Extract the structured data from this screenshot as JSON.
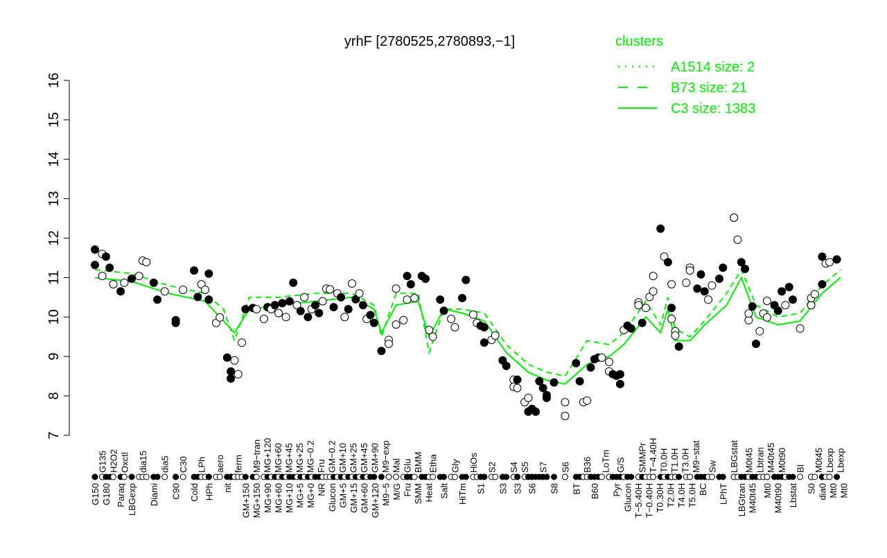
{
  "chart_data": {
    "type": "scatter",
    "title": "yrhF [2780525,2780893,−1]",
    "xlabel": "",
    "ylabel": "",
    "ylim": [
      7,
      16
    ],
    "xlim": [
      0,
      203
    ],
    "yticks": [
      "7",
      "8",
      "9",
      "10",
      "11",
      "12",
      "13",
      "14",
      "15",
      "16"
    ],
    "legend": {
      "title": "clusters",
      "placement": "top-right",
      "color": "#00ee00",
      "entries": [
        {
          "label": "A1514 size: 2",
          "style": "dotted"
        },
        {
          "label": "B73 size: 21",
          "style": "dashed"
        },
        {
          "label": "C3 size: 1383",
          "style": "solid"
        }
      ]
    },
    "points": [
      [
        0,
        11.71,
        1
      ],
      [
        0,
        11.32,
        1
      ],
      [
        2,
        11.6,
        0
      ],
      [
        2,
        11.04,
        0
      ],
      [
        3,
        11.53,
        1
      ],
      [
        4,
        11.25,
        1
      ],
      [
        5,
        10.83,
        0
      ],
      [
        7,
        10.65,
        1
      ],
      [
        8,
        10.87,
        0
      ],
      [
        10,
        10.97,
        1
      ],
      [
        12,
        11.04,
        0
      ],
      [
        13,
        11.43,
        0
      ],
      [
        14,
        11.39,
        0
      ],
      [
        16,
        10.87,
        1
      ],
      [
        17,
        10.44,
        1
      ],
      [
        19,
        10.65,
        0
      ],
      [
        22,
        9.92,
        1
      ],
      [
        22,
        9.85,
        1
      ],
      [
        24,
        10.69,
        0
      ],
      [
        27,
        11.18,
        1
      ],
      [
        28,
        10.51,
        1
      ],
      [
        29,
        10.83,
        0
      ],
      [
        30,
        10.69,
        0
      ],
      [
        31,
        11.1,
        1
      ],
      [
        31,
        10.44,
        1
      ],
      [
        33,
        9.85,
        0
      ],
      [
        34,
        9.99,
        0
      ],
      [
        36,
        8.97,
        1
      ],
      [
        37,
        8.62,
        1
      ],
      [
        37,
        8.44,
        1
      ],
      [
        38,
        8.9,
        0
      ],
      [
        39,
        8.55,
        0
      ],
      [
        40,
        9.35,
        0
      ],
      [
        41,
        10.2,
        1
      ],
      [
        43,
        10.23,
        1
      ],
      [
        44,
        10.2,
        0
      ],
      [
        46,
        9.95,
        0
      ],
      [
        47,
        10.25,
        1
      ],
      [
        48,
        10.2,
        0
      ],
      [
        49,
        10.3,
        1
      ],
      [
        50,
        10.1,
        0
      ],
      [
        51,
        10.35,
        1
      ],
      [
        52,
        10.0,
        0
      ],
      [
        53,
        10.4,
        1
      ],
      [
        54,
        10.87,
        1
      ],
      [
        55,
        10.3,
        0
      ],
      [
        56,
        10.15,
        1
      ],
      [
        57,
        10.5,
        0
      ],
      [
        58,
        10.0,
        1
      ],
      [
        59,
        10.2,
        0
      ],
      [
        60,
        10.3,
        1
      ],
      [
        61,
        10.1,
        1
      ],
      [
        62,
        10.4,
        0
      ],
      [
        63,
        10.72,
        0
      ],
      [
        64,
        10.7,
        0
      ],
      [
        65,
        10.25,
        1
      ],
      [
        66,
        10.6,
        0
      ],
      [
        67,
        10.5,
        1
      ],
      [
        68,
        10.0,
        0
      ],
      [
        69,
        10.2,
        1
      ],
      [
        70,
        10.85,
        0
      ],
      [
        71,
        10.45,
        1
      ],
      [
        72,
        10.6,
        0
      ],
      [
        73,
        10.3,
        1
      ],
      [
        74,
        9.95,
        0
      ],
      [
        75,
        10.05,
        1
      ],
      [
        76,
        9.85,
        1
      ],
      [
        78,
        9.14,
        1
      ],
      [
        80,
        9.42,
        0
      ],
      [
        80,
        9.32,
        0
      ],
      [
        82,
        10.72,
        0
      ],
      [
        82,
        9.81,
        0
      ],
      [
        84,
        9.92,
        0
      ],
      [
        85,
        10.44,
        0
      ],
      [
        85,
        11.04,
        1
      ],
      [
        86,
        10.83,
        1
      ],
      [
        87,
        10.48,
        0
      ],
      [
        89,
        11.04,
        1
      ],
      [
        90,
        10.97,
        1
      ],
      [
        91,
        9.67,
        0
      ],
      [
        92,
        9.5,
        0
      ],
      [
        94,
        10.44,
        1
      ],
      [
        95,
        10.16,
        1
      ],
      [
        97,
        9.95,
        0
      ],
      [
        98,
        9.74,
        0
      ],
      [
        100,
        10.48,
        1
      ],
      [
        101,
        10.94,
        1
      ],
      [
        103,
        10.06,
        0
      ],
      [
        104,
        9.85,
        0
      ],
      [
        105,
        9.78,
        1
      ],
      [
        106,
        9.35,
        1
      ],
      [
        106,
        9.74,
        1
      ],
      [
        108,
        9.42,
        0
      ],
      [
        109,
        9.53,
        0
      ],
      [
        111,
        8.9,
        1
      ],
      [
        112,
        8.76,
        1
      ],
      [
        114,
        8.41,
        0
      ],
      [
        114,
        8.23,
        0
      ],
      [
        115,
        8.2,
        0
      ],
      [
        115,
        8.41,
        1
      ],
      [
        117,
        7.84,
        0
      ],
      [
        118,
        7.95,
        0
      ],
      [
        118,
        7.6,
        1
      ],
      [
        119,
        7.67,
        1
      ],
      [
        120,
        7.6,
        1
      ],
      [
        121,
        8.37,
        1
      ],
      [
        122,
        8.2,
        1
      ],
      [
        123,
        8.02,
        1
      ],
      [
        123,
        7.95,
        1
      ],
      [
        125,
        8.34,
        1
      ],
      [
        128,
        7.84,
        0
      ],
      [
        128,
        7.49,
        0
      ],
      [
        131,
        8.83,
        1
      ],
      [
        132,
        8.37,
        1
      ],
      [
        133,
        7.84,
        0
      ],
      [
        134,
        7.88,
        0
      ],
      [
        135,
        8.72,
        1
      ],
      [
        136,
        8.93,
        1
      ],
      [
        137,
        8.97,
        1
      ],
      [
        138,
        8.97,
        0
      ],
      [
        140,
        8.86,
        0
      ],
      [
        140,
        8.62,
        0
      ],
      [
        141,
        8.55,
        1
      ],
      [
        142,
        8.51,
        1
      ],
      [
        143,
        8.55,
        1
      ],
      [
        143,
        8.3,
        1
      ],
      [
        144,
        9.67,
        0
      ],
      [
        145,
        9.78,
        1
      ],
      [
        146,
        9.71,
        1
      ],
      [
        148,
        10.37,
        0
      ],
      [
        148,
        10.3,
        0
      ],
      [
        149,
        9.85,
        1
      ],
      [
        150,
        10.23,
        0
      ],
      [
        151,
        10.51,
        0
      ],
      [
        152,
        10.65,
        0
      ],
      [
        152,
        11.04,
        0
      ],
      [
        154,
        12.24,
        1
      ],
      [
        155,
        11.53,
        0
      ],
      [
        156,
        11.39,
        1
      ],
      [
        157,
        10.83,
        0
      ],
      [
        157,
        10.23,
        1
      ],
      [
        157,
        9.95,
        0
      ],
      [
        158,
        9.64,
        0
      ],
      [
        158,
        9.53,
        0
      ],
      [
        159,
        9.25,
        1
      ],
      [
        161,
        10.87,
        0
      ],
      [
        162,
        11.25,
        0
      ],
      [
        162,
        11.18,
        0
      ],
      [
        164,
        10.72,
        1
      ],
      [
        165,
        11.08,
        1
      ],
      [
        166,
        10.65,
        1
      ],
      [
        167,
        10.44,
        0
      ],
      [
        168,
        10.8,
        0
      ],
      [
        170,
        10.97,
        1
      ],
      [
        171,
        11.25,
        1
      ],
      [
        174,
        12.52,
        0
      ],
      [
        174,
        12.52,
        0
      ],
      [
        175,
        11.96,
        0
      ],
      [
        176,
        11.39,
        1
      ],
      [
        177,
        11.22,
        1
      ],
      [
        178,
        9.92,
        0
      ],
      [
        178,
        10.09,
        0
      ],
      [
        179,
        10.27,
        1
      ],
      [
        180,
        9.32,
        1
      ],
      [
        181,
        9.64,
        0
      ],
      [
        182,
        10.09,
        0
      ],
      [
        183,
        10.41,
        0
      ],
      [
        183,
        9.99,
        0
      ],
      [
        185,
        10.3,
        1
      ],
      [
        186,
        10.16,
        1
      ],
      [
        187,
        10.65,
        1
      ],
      [
        188,
        10.3,
        0
      ],
      [
        189,
        10.76,
        1
      ],
      [
        190,
        10.44,
        1
      ],
      [
        192,
        9.71,
        0
      ],
      [
        195,
        10.3,
        0
      ],
      [
        195,
        10.48,
        0
      ],
      [
        196,
        10.58,
        0
      ],
      [
        198,
        10.83,
        1
      ],
      [
        198,
        11.53,
        1
      ],
      [
        199,
        11.36,
        0
      ],
      [
        200,
        11.39,
        0
      ],
      [
        202,
        11.46,
        1
      ]
    ],
    "series": [
      {
        "name": "C3 size: 1383",
        "style": "solid",
        "x": [
          0,
          10,
          20,
          30,
          35,
          38,
          42,
          50,
          60,
          70,
          76,
          78,
          82,
          88,
          91,
          95,
          100,
          106,
          112,
          118,
          123,
          128,
          134,
          140,
          144,
          150,
          154,
          156,
          158,
          162,
          166,
          172,
          176,
          180,
          186,
          192,
          198,
          203
        ],
        "y": [
          11.0,
          10.9,
          10.6,
          10.4,
          9.9,
          9.6,
          10.2,
          10.3,
          10.4,
          10.5,
          10.2,
          9.6,
          10.3,
          10.4,
          9.5,
          10.2,
          10.1,
          9.9,
          9.1,
          8.6,
          8.4,
          8.3,
          8.8,
          9.0,
          9.3,
          10.0,
          9.6,
          10.2,
          9.4,
          9.4,
          9.8,
          10.3,
          11.0,
          10.0,
          9.8,
          9.9,
          10.6,
          11.0
        ]
      },
      {
        "name": "B73 size: 21",
        "style": "dashed",
        "x": [
          0,
          10,
          20,
          30,
          35,
          38,
          42,
          50,
          60,
          70,
          76,
          78,
          82,
          88,
          91,
          95,
          100,
          106,
          112,
          118,
          123,
          128,
          134,
          140,
          144,
          150,
          154,
          156,
          158,
          162,
          166,
          172,
          176,
          180,
          186,
          192,
          198,
          203
        ],
        "y": [
          11.2,
          11.1,
          10.8,
          10.6,
          10.2,
          9.4,
          10.5,
          10.5,
          10.6,
          10.6,
          10.3,
          9.5,
          10.6,
          10.6,
          9.1,
          10.2,
          10.2,
          10.1,
          9.3,
          8.8,
          8.6,
          8.5,
          9.4,
          9.3,
          9.6,
          10.4,
          9.8,
          10.5,
          9.7,
          9.5,
          9.9,
          10.6,
          11.2,
          10.3,
          10.0,
          10.1,
          10.8,
          11.2
        ]
      }
    ],
    "xlabels_top": [
      [
        2,
        "G135"
      ],
      [
        5,
        "H2O2"
      ],
      [
        8,
        "Oxctl"
      ],
      [
        13,
        "dia15"
      ],
      [
        19,
        "dia5"
      ],
      [
        24,
        "C30"
      ],
      [
        29,
        "LPh"
      ],
      [
        34,
        "aero"
      ],
      [
        39,
        "ferm"
      ],
      [
        44,
        "M9−tran"
      ],
      [
        46,
        "MG+120"
      ],
      [
        49,
        "MG+60"
      ],
      [
        51,
        "MG+45"
      ],
      [
        53,
        "MG+25"
      ],
      [
        56,
        "MG−0.2"
      ],
      [
        58,
        "Fru"
      ],
      [
        61,
        "GM−0.2"
      ],
      [
        63,
        "GM+10"
      ],
      [
        65,
        "GM+25"
      ],
      [
        67,
        "GM+45"
      ],
      [
        70,
        "GM+90"
      ],
      [
        74,
        "M9−exp"
      ],
      [
        80,
        "Mal"
      ],
      [
        85,
        "Glu"
      ],
      [
        87,
        "BMM"
      ],
      [
        92,
        "Etha"
      ],
      [
        98,
        "Gly"
      ],
      [
        103,
        "HiOs"
      ],
      [
        108,
        "S2"
      ],
      [
        114,
        "S4"
      ],
      [
        117,
        "S5"
      ],
      [
        122,
        "S7"
      ],
      [
        128,
        "S6"
      ],
      [
        134,
        "B36"
      ],
      [
        139,
        "LoTm"
      ],
      [
        143,
        "G/S"
      ],
      [
        149,
        "SMMPr"
      ],
      [
        150,
        "T−4.40H"
      ],
      [
        152,
        "T0.0H"
      ],
      [
        156,
        "T1.0H"
      ],
      [
        158,
        "T3.0H"
      ],
      [
        161,
        "M9−stat"
      ],
      [
        168,
        "Sw"
      ],
      [
        174,
        "LBGstat"
      ],
      [
        178,
        "M0t45"
      ],
      [
        181,
        "Lbtran"
      ],
      [
        183,
        "M40t45"
      ],
      [
        187,
        "M0t90"
      ],
      [
        192,
        "BI"
      ],
      [
        197,
        "M0t45"
      ],
      [
        200,
        "Lbexp"
      ],
      [
        201,
        "Lbexp"
      ]
    ],
    "xlabels_bottom": [
      [
        0,
        "G150"
      ],
      [
        3,
        "G180"
      ],
      [
        7,
        "Paraq"
      ],
      [
        10,
        "LBGexp"
      ],
      [
        16,
        "Diami"
      ],
      [
        22,
        "C90"
      ],
      [
        27,
        "Cold"
      ],
      [
        31,
        "HPh"
      ],
      [
        36,
        "nit"
      ],
      [
        41,
        "GM+150"
      ],
      [
        43,
        "MG+150"
      ],
      [
        47,
        "MG+90"
      ],
      [
        48,
        "MG+60"
      ],
      [
        50,
        "MG+10"
      ],
      [
        52,
        "MG+5"
      ],
      [
        54,
        "MG+0"
      ],
      [
        57,
        "NR"
      ],
      [
        59,
        "Glucon"
      ],
      [
        62,
        "GM+5"
      ],
      [
        64,
        "GM+15"
      ],
      [
        66,
        "GM+60"
      ],
      [
        68,
        "GM+120"
      ],
      [
        71,
        "M9−5"
      ],
      [
        78,
        "M/G"
      ],
      [
        82,
        "Fru"
      ],
      [
        86,
        "SMM"
      ],
      [
        89,
        "Heat"
      ],
      [
        95,
        "Salt"
      ],
      [
        100,
        "HiTm"
      ],
      [
        105,
        "S1"
      ],
      [
        111,
        "S3"
      ],
      [
        115,
        "S3"
      ],
      [
        119,
        "S6"
      ],
      [
        125,
        "S8"
      ],
      [
        131,
        "BT"
      ],
      [
        136,
        "B60"
      ],
      [
        142,
        "Pyr"
      ],
      [
        145,
        "Glucon"
      ],
      [
        147,
        "T−5.40H"
      ],
      [
        148,
        "T−0.40H"
      ],
      [
        153,
        "T0.30H"
      ],
      [
        155,
        "T2.0H"
      ],
      [
        157,
        "T4.0H"
      ],
      [
        159,
        "T5.0H"
      ],
      [
        165,
        "BC"
      ],
      [
        171,
        "LPhT"
      ],
      [
        176,
        "LBGtran"
      ],
      [
        179,
        "M40t45"
      ],
      [
        183,
        "Mt0"
      ],
      [
        185,
        "M40t90"
      ],
      [
        190,
        "Lbstat"
      ],
      [
        195,
        "S0"
      ],
      [
        198,
        "dia0"
      ],
      [
        200,
        "Mt0"
      ],
      [
        202,
        "Mt0"
      ]
    ]
  }
}
